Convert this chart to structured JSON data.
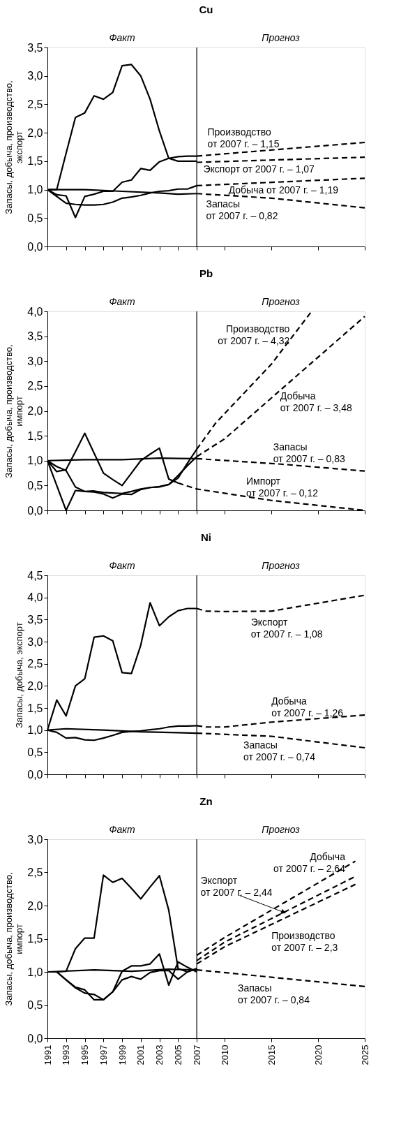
{
  "chart_data": [
    {
      "type": "line",
      "title": "Cu",
      "ylabel": "Запасы, добыча, производство,\nэкспорт",
      "xlim": [
        1991,
        2025
      ],
      "ylim": [
        0,
        3.5
      ],
      "xticks": [
        {
          "value": 1991,
          "label": null
        },
        {
          "value": 1993,
          "label": null
        },
        {
          "value": 1995,
          "label": null
        },
        {
          "value": 1997,
          "label": null
        },
        {
          "value": 1999,
          "label": null
        },
        {
          "value": 2001,
          "label": null
        },
        {
          "value": 2003,
          "label": null
        },
        {
          "value": 2005,
          "label": null
        },
        {
          "value": 2007,
          "label": null
        },
        {
          "value": 2010,
          "label": null
        },
        {
          "value": 2015,
          "label": null
        },
        {
          "value": 2020,
          "label": null
        },
        {
          "value": 2025,
          "label": null
        }
      ],
      "yticks": [
        {
          "value": 0,
          "label": "0,0"
        },
        {
          "value": 0.5,
          "label": "0,5"
        },
        {
          "value": 1,
          "label": "1,0"
        },
        {
          "value": 1.5,
          "label": "1,5"
        },
        {
          "value": 2,
          "label": "2,0"
        },
        {
          "value": 2.5,
          "label": "2,5"
        },
        {
          "value": 3,
          "label": "3,0"
        },
        {
          "value": 3.5,
          "label": "3,5"
        }
      ],
      "tick_labels": "y",
      "grid": false,
      "ref_lines": [
        {
          "axis": "x",
          "value": 2007
        }
      ],
      "annotations": [
        "Факт",
        "Прогноз",
        {
          "text": "Производство\nот 2007 г. – 1,15",
          "x": 2008,
          "y": 1.6
        },
        {
          "text": "Экспорт от 2007 г. – 1,07",
          "x": 2008,
          "y": 1.49
        },
        {
          "text": "Добыча от 2007 г. – 1,19",
          "x": 2011,
          "y": 1.1
        },
        {
          "text": "Запасы\nот 2007 г. – 0,82",
          "x": 2008,
          "y": 0.92
        }
      ],
      "series": [
        {
          "color": "#000000",
          "line_style": "solid",
          "x": [
            1991,
            1992,
            1993,
            1994,
            1995,
            1996,
            1997,
            1998,
            1999,
            2000,
            2001,
            2002,
            2003,
            2004,
            2005,
            2006,
            2007
          ],
          "values": [
            1.0,
            1.0,
            1.64,
            2.27,
            2.35,
            2.65,
            2.59,
            2.71,
            3.18,
            3.2,
            3.0,
            2.59,
            2.03,
            1.55,
            1.5,
            1.5,
            1.5
          ]
        },
        {
          "color": "#000000",
          "line_style": "solid",
          "x": [
            1991,
            1992,
            1993,
            1994,
            1995,
            1996,
            1997,
            1998,
            1999,
            2000,
            2001,
            2002,
            2003,
            2004,
            2005,
            2006,
            2007
          ],
          "values": [
            1.0,
            0.91,
            0.89,
            0.51,
            0.88,
            0.92,
            0.97,
            0.97,
            1.13,
            1.17,
            1.37,
            1.34,
            1.49,
            1.55,
            1.58,
            1.59,
            1.59
          ]
        },
        {
          "color": "#000000",
          "line_style": "solid",
          "x": [
            1991,
            1992,
            1993,
            1994,
            1995,
            1996,
            1997,
            1998,
            1999,
            2000,
            2001,
            2002,
            2003,
            2004,
            2005,
            2006,
            2007
          ],
          "values": [
            1.0,
            0.88,
            0.76,
            0.74,
            0.73,
            0.73,
            0.74,
            0.78,
            0.85,
            0.87,
            0.9,
            0.94,
            0.97,
            0.98,
            1.01,
            1.01,
            1.07
          ]
        },
        {
          "color": "#000000",
          "line_style": "solid",
          "x": [
            1991,
            1995,
            1999,
            2003,
            2005,
            2007
          ],
          "values": [
            1.0,
            1.0,
            0.97,
            0.94,
            0.92,
            0.93
          ]
        },
        {
          "color": "#000000",
          "line_style": "dashed",
          "x": [
            2007,
            2025
          ],
          "values": [
            1.59,
            1.83
          ]
        },
        {
          "color": "#000000",
          "line_style": "dashed",
          "x": [
            2007,
            2025
          ],
          "values": [
            1.48,
            1.57
          ]
        },
        {
          "color": "#000000",
          "line_style": "dashed",
          "x": [
            2007,
            2025
          ],
          "values": [
            1.07,
            1.2
          ]
        },
        {
          "color": "#000000",
          "line_style": "dashed",
          "x": [
            2007,
            2015,
            2025
          ],
          "values": [
            0.93,
            0.85,
            0.68
          ]
        }
      ]
    },
    {
      "type": "line",
      "title": "Pb",
      "ylabel": "Запасы, добыча, производство,\nимпорт",
      "xlim": [
        1991,
        2025
      ],
      "ylim": [
        0,
        4
      ],
      "xticks": [
        {
          "value": 1991,
          "label": null
        },
        {
          "value": 1993,
          "label": null
        },
        {
          "value": 1995,
          "label": null
        },
        {
          "value": 1997,
          "label": null
        },
        {
          "value": 1999,
          "label": null
        },
        {
          "value": 2001,
          "label": null
        },
        {
          "value": 2003,
          "label": null
        },
        {
          "value": 2005,
          "label": null
        },
        {
          "value": 2007,
          "label": null
        },
        {
          "value": 2010,
          "label": null
        },
        {
          "value": 2015,
          "label": null
        },
        {
          "value": 2020,
          "label": null
        },
        {
          "value": 2025,
          "label": null
        }
      ],
      "yticks": [
        {
          "value": 0,
          "label": "0,0"
        },
        {
          "value": 0.5,
          "label": "0,5"
        },
        {
          "value": 1,
          "label": "1,0"
        },
        {
          "value": 1.5,
          "label": "1,5"
        },
        {
          "value": 2,
          "label": "2,0"
        },
        {
          "value": 2.5,
          "label": "2,5"
        },
        {
          "value": 3,
          "label": "3,0"
        },
        {
          "value": 3.5,
          "label": "3,5"
        },
        {
          "value": 4,
          "label": "4,0"
        }
      ],
      "tick_labels": "y",
      "grid": false,
      "ref_lines": [
        {
          "axis": "x",
          "value": 2007
        }
      ],
      "annotations": [
        "Факт",
        "Прогноз",
        {
          "text": "Производство\nот 2007 г. – 4,32",
          "x": 2017.4,
          "y": 3.53
        },
        {
          "text": "Добыча\nот 2007 г. – 3,48",
          "x": 2015.2,
          "y": 2.29
        },
        {
          "text": "Запасы\nот 2007 г. – 0,83",
          "x": 2015.2,
          "y": 0.94
        },
        {
          "text": "Импорт\nот 2007 г. – 0,12",
          "x": 2012.3,
          "y": 0.28
        }
      ],
      "series": [
        {
          "color": "#000000",
          "line_style": "solid",
          "x": [
            1991,
            1992,
            1993,
            1994,
            1995,
            1996,
            1997,
            1998,
            1999,
            2000,
            2001,
            2002,
            2003,
            2004,
            2005,
            2006,
            2007
          ],
          "values": [
            1.0,
            0.5,
            0.0,
            0.4,
            0.38,
            0.37,
            0.33,
            0.25,
            0.33,
            0.32,
            0.42,
            0.46,
            0.47,
            0.52,
            0.65,
            0.95,
            1.23
          ]
        },
        {
          "color": "#000000",
          "line_style": "solid",
          "x": [
            1991,
            1992,
            1993,
            1994,
            1995,
            1996,
            1997,
            1998,
            1999,
            2000,
            2001,
            2002,
            2003,
            2004,
            2005,
            2006,
            2007
          ],
          "values": [
            1.0,
            0.88,
            0.8,
            0.47,
            0.38,
            0.39,
            0.36,
            0.35,
            0.34,
            0.38,
            0.43,
            0.46,
            0.48,
            0.52,
            0.7,
            0.9,
            1.08
          ]
        },
        {
          "color": "#000000",
          "line_style": "solid",
          "x": [
            1991,
            1995,
            1999,
            2003,
            2007
          ],
          "values": [
            1.0,
            1.02,
            1.02,
            1.05,
            1.04
          ]
        },
        {
          "color": "#000000",
          "line_style": "solid",
          "x": [
            1991,
            1992,
            1993,
            1994,
            1995,
            1996,
            1997,
            1998,
            1999,
            2000,
            2001,
            2002,
            2003,
            2004,
            2005
          ],
          "values": [
            1.0,
            0.78,
            0.82,
            1.18,
            1.55,
            1.15,
            0.75,
            0.62,
            0.5,
            0.75,
            1.0,
            1.13,
            1.25,
            0.63,
            0.55
          ]
        },
        {
          "color": "#000000",
          "line_style": "dashed",
          "x": [
            2007,
            2009,
            2015,
            2019.3
          ],
          "values": [
            1.23,
            1.75,
            2.94,
            4.0
          ]
        },
        {
          "color": "#000000",
          "line_style": "dashed",
          "x": [
            2007,
            2010,
            2025
          ],
          "values": [
            1.08,
            1.44,
            3.9
          ]
        },
        {
          "color": "#000000",
          "line_style": "dashed",
          "x": [
            2007,
            2016,
            2025
          ],
          "values": [
            1.04,
            0.93,
            0.79
          ]
        },
        {
          "color": "#000000",
          "line_style": "dashed",
          "x": [
            2005,
            2007,
            2015,
            2025
          ],
          "values": [
            0.55,
            0.43,
            0.2,
            0.0
          ]
        }
      ]
    },
    {
      "type": "line",
      "title": "Ni",
      "ylabel": "Запасы, добыча, экспорт",
      "xlim": [
        1991,
        2025
      ],
      "ylim": [
        0,
        4.5
      ],
      "xticks": [
        {
          "value": 1991,
          "label": null
        },
        {
          "value": 1993,
          "label": null
        },
        {
          "value": 1995,
          "label": null
        },
        {
          "value": 1997,
          "label": null
        },
        {
          "value": 1999,
          "label": null
        },
        {
          "value": 2001,
          "label": null
        },
        {
          "value": 2003,
          "label": null
        },
        {
          "value": 2005,
          "label": null
        },
        {
          "value": 2007,
          "label": null
        },
        {
          "value": 2010,
          "label": null
        },
        {
          "value": 2015,
          "label": null
        },
        {
          "value": 2020,
          "label": null
        },
        {
          "value": 2025,
          "label": null
        }
      ],
      "yticks": [
        {
          "value": 0,
          "label": "0,0"
        },
        {
          "value": 0.5,
          "label": "0,5"
        },
        {
          "value": 1,
          "label": "1,0"
        },
        {
          "value": 1.5,
          "label": "1,5"
        },
        {
          "value": 2,
          "label": "2,0"
        },
        {
          "value": 2.5,
          "label": "2,5"
        },
        {
          "value": 3,
          "label": "3,0"
        },
        {
          "value": 3.5,
          "label": "3,5"
        },
        {
          "value": 4,
          "label": "4,0"
        },
        {
          "value": 4.5,
          "label": "4,5"
        }
      ],
      "tick_labels": "y",
      "grid": false,
      "ref_lines": [
        {
          "axis": "x",
          "value": 2007
        }
      ],
      "annotations": [
        "Факт",
        "Прогноз",
        {
          "text": "Экспорт\nот 2007 г. – 1,08",
          "x": 2012.8,
          "y": 3.69
        },
        {
          "text": "Добыча\nот 2007 г. – 1,26",
          "x": 2015,
          "y": 1.18
        },
        {
          "text": "Запасы\nот 2007 г. – 0,74",
          "x": 2012,
          "y": 0.89
        }
      ],
      "series": [
        {
          "color": "#000000",
          "line_style": "solid",
          "x": [
            1991,
            1992,
            1993,
            1994,
            1995,
            1996,
            1997,
            1998,
            1999,
            2000,
            2001,
            2002,
            2003,
            2004,
            2005,
            2006,
            2007
          ],
          "values": [
            1.0,
            1.68,
            1.32,
            2.0,
            2.16,
            3.1,
            3.13,
            3.02,
            2.3,
            2.28,
            2.92,
            3.88,
            3.36,
            3.56,
            3.7,
            3.75,
            3.75
          ]
        },
        {
          "color": "#000000",
          "line_style": "solid",
          "x": [
            1991,
            1992,
            1993,
            1994,
            1995,
            1996,
            1997,
            1998,
            1999,
            2000,
            2001,
            2002,
            2003,
            2004,
            2005,
            2006,
            2007
          ],
          "values": [
            1.0,
            0.95,
            0.82,
            0.83,
            0.78,
            0.77,
            0.82,
            0.88,
            0.95,
            0.97,
            0.98,
            1.01,
            1.03,
            1.07,
            1.09,
            1.09,
            1.1
          ]
        },
        {
          "color": "#000000",
          "line_style": "solid",
          "x": [
            1991,
            1993,
            1997,
            2001,
            2005,
            2007
          ],
          "values": [
            1.0,
            1.03,
            1.0,
            0.96,
            0.94,
            0.93
          ]
        },
        {
          "color": "#000000",
          "line_style": "dashed",
          "x": [
            2007,
            2008,
            2010,
            2015,
            2025
          ],
          "values": [
            3.75,
            3.69,
            3.68,
            3.69,
            4.05
          ]
        },
        {
          "color": "#000000",
          "line_style": "dashed",
          "x": [
            2007,
            2008,
            2010,
            2015,
            2025
          ],
          "values": [
            1.1,
            1.07,
            1.07,
            1.18,
            1.34
          ]
        },
        {
          "color": "#000000",
          "line_style": "dashed",
          "x": [
            2007,
            2015,
            2025
          ],
          "values": [
            0.93,
            0.86,
            0.6
          ]
        }
      ]
    },
    {
      "type": "line",
      "title": "Zn",
      "ylabel": "Запасы, добыча, производство,\nимпорт",
      "xlim": [
        1991,
        2025
      ],
      "ylim": [
        0,
        3
      ],
      "xticks": [
        1991,
        1993,
        1995,
        1997,
        1999,
        2001,
        2003,
        2005,
        2007,
        2010,
        2015,
        2020,
        2025
      ],
      "yticks": [
        {
          "value": 0,
          "label": "0,0"
        },
        {
          "value": 0.5,
          "label": "0,5"
        },
        {
          "value": 1,
          "label": "1,0"
        },
        {
          "value": 1.5,
          "label": "1,5"
        },
        {
          "value": 2,
          "label": "2,0"
        },
        {
          "value": 2.5,
          "label": "2,5"
        },
        {
          "value": 3,
          "label": "3,0"
        }
      ],
      "grid": false,
      "ref_lines": [
        {
          "axis": "x",
          "value": 2007
        }
      ],
      "annotations": [
        "Факт",
        "Прогноз",
        {
          "text": "Добыча\nот 2007 г. – 2,64",
          "x": 2023.5,
          "y": 2.63
        },
        {
          "text": "Экспорт\nот 2007 г. – 2,44",
          "x": 2016.3,
          "y": 1.9
        },
        {
          "text": "Производство\nот 2007 г. – 2,3",
          "x": 2015,
          "y": 1.72
        },
        {
          "text": "Запасы\nот 2007 г. – 0,84",
          "x": 2011.4,
          "y": 0.97
        }
      ],
      "series": [
        {
          "color": "#000000",
          "line_style": "solid",
          "x": [
            1991,
            1992,
            1993,
            1994,
            1995,
            1996,
            1997,
            1998,
            1999,
            2000,
            2001,
            2002,
            2003,
            2004,
            2005,
            2006,
            2007
          ],
          "values": [
            1.0,
            1.0,
            1.01,
            1.35,
            1.51,
            1.51,
            2.46,
            2.35,
            2.41,
            2.26,
            2.1,
            2.28,
            2.45,
            1.93,
            1.05,
            1.0,
            1.05
          ]
        },
        {
          "color": "#000000",
          "line_style": "solid",
          "x": [
            1991,
            1992,
            1993,
            1994,
            1995,
            1996,
            1997,
            1998,
            1999,
            2000,
            2001,
            2002,
            2003,
            2004,
            2005,
            2006,
            2007
          ],
          "values": [
            1.0,
            1.0,
            0.88,
            0.77,
            0.73,
            0.58,
            0.58,
            0.7,
            1.01,
            1.09,
            1.09,
            1.12,
            1.27,
            0.8,
            1.15,
            1.07,
            1.0
          ]
        },
        {
          "color": "#000000",
          "line_style": "solid",
          "x": [
            1991,
            1992,
            1993,
            1994,
            1995,
            1996,
            1997,
            1998,
            1999,
            2000,
            2001,
            2002,
            2003,
            2004,
            2005,
            2006,
            2007
          ],
          "values": [
            1.0,
            1.0,
            0.88,
            0.76,
            0.68,
            0.66,
            0.58,
            0.7,
            0.88,
            0.93,
            0.89,
            0.99,
            1.02,
            1.02,
            0.89,
            1.0,
            1.05
          ]
        },
        {
          "color": "#000000",
          "line_style": "solid",
          "x": [
            1991,
            1996,
            2000,
            2004,
            2007
          ],
          "values": [
            1.0,
            1.03,
            1.01,
            1.04,
            1.03
          ]
        },
        {
          "color": "#000000",
          "line_style": "dashed",
          "x": [
            2007,
            2010,
            2024
          ],
          "values": [
            1.25,
            1.52,
            2.67
          ]
        },
        {
          "color": "#000000",
          "line_style": "dashed",
          "x": [
            2007,
            2010,
            2024
          ],
          "values": [
            1.17,
            1.45,
            2.44
          ]
        },
        {
          "color": "#000000",
          "line_style": "dashed",
          "x": [
            2007,
            2010,
            2024
          ],
          "values": [
            1.12,
            1.38,
            2.32
          ]
        },
        {
          "color": "#000000",
          "line_style": "dashed",
          "x": [
            2007,
            2015,
            2025
          ],
          "values": [
            1.03,
            0.92,
            0.78
          ]
        }
      ]
    }
  ]
}
